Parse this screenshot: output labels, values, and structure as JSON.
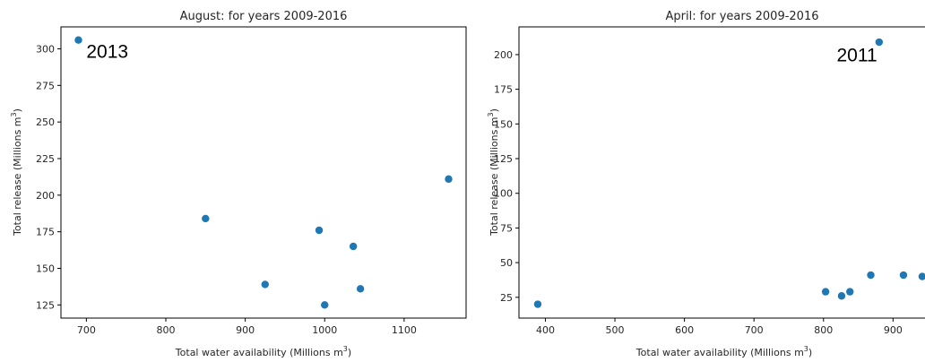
{
  "chart_data": [
    {
      "type": "scatter",
      "title": "August: for years 2009-2016",
      "xlabel": "Total water availability (Millions $m^3$)",
      "ylabel": "Total release (Millions $m^3$)",
      "xlim": [
        668,
        1178
      ],
      "ylim": [
        116,
        315
      ],
      "xticks": [
        700,
        800,
        900,
        1000,
        1100
      ],
      "yticks": [
        125,
        150,
        175,
        200,
        225,
        250,
        275,
        300
      ],
      "grid": false,
      "legend": "none",
      "point_color": "#1f77b4",
      "points": [
        {
          "x": 690,
          "y": 306
        },
        {
          "x": 850,
          "y": 184
        },
        {
          "x": 925,
          "y": 139
        },
        {
          "x": 993,
          "y": 176
        },
        {
          "x": 1000,
          "y": 125
        },
        {
          "x": 1036,
          "y": 165
        },
        {
          "x": 1045,
          "y": 136
        },
        {
          "x": 1156,
          "y": 211
        }
      ],
      "annotations": [
        {
          "text": "2013",
          "x": 700,
          "y": 294
        }
      ]
    },
    {
      "type": "scatter",
      "title": "April: for years 2009-2016",
      "xlabel": "Total water availability (Millions $m^3$)",
      "ylabel": "Total release (Millions $m^3$)",
      "xlim": [
        362,
        955
      ],
      "ylim": [
        10,
        220
      ],
      "xticks": [
        400,
        500,
        600,
        700,
        800,
        900
      ],
      "yticks": [
        25,
        50,
        75,
        100,
        125,
        150,
        175,
        200
      ],
      "grid": false,
      "legend": "none",
      "point_color": "#1f77b4",
      "points": [
        {
          "x": 389,
          "y": 20
        },
        {
          "x": 803,
          "y": 29
        },
        {
          "x": 826,
          "y": 26
        },
        {
          "x": 838,
          "y": 29
        },
        {
          "x": 868,
          "y": 41
        },
        {
          "x": 880,
          "y": 209
        },
        {
          "x": 915,
          "y": 41
        },
        {
          "x": 942,
          "y": 40
        }
      ],
      "annotations": [
        {
          "text": "2011",
          "x": 819,
          "y": 195
        }
      ]
    }
  ]
}
